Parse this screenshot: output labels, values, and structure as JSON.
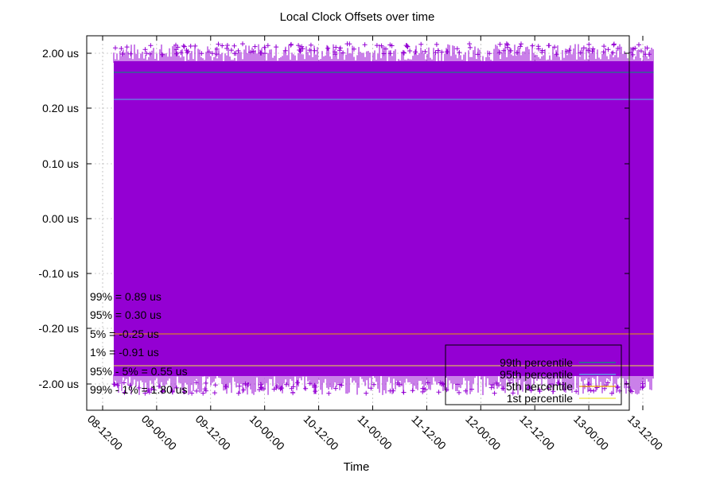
{
  "chart_data": {
    "type": "scatter",
    "title": "Local Clock Offsets over time",
    "xlabel": "Time",
    "ylabel": "",
    "y_scale": "symmetric-log",
    "y_ticks": [
      "2.00 us",
      "0.20 us",
      "0.10 us",
      "0.00 us",
      "-0.10 us",
      "-0.20 us",
      "-2.00 us"
    ],
    "y_tick_values": [
      2.0,
      0.2,
      0.1,
      0.0,
      -0.1,
      -0.2,
      -2.0
    ],
    "x_ticks": [
      "08-12:00",
      "09-00:00",
      "09-12:00",
      "10-00:00",
      "10-12:00",
      "11-00:00",
      "11-12:00",
      "12-00:00",
      "12-12:00",
      "13-00:00",
      "13-12:00"
    ],
    "x_range_ticks": [
      0.25,
      10.2
    ],
    "grid": true,
    "series": [
      {
        "name": "Local Clock Offsets",
        "color": "#9400d3",
        "marker": "+",
        "band_upper_us": 2.0,
        "band_lower_us": -2.0
      }
    ],
    "percentile_lines": [
      {
        "name": "99th percentile",
        "value": "0.89 us",
        "color": "#009e73"
      },
      {
        "name": "95th percentile",
        "value": "0.30 us",
        "color": "#56b4e9"
      },
      {
        "name": "5th percentile",
        "value": "-0.25 us",
        "color": "#e69f00"
      },
      {
        "name": "1st percentile",
        "value": "-0.91 us",
        "color": "#f0e442"
      }
    ],
    "stats": [
      "99% = 0.89 us",
      "95% = 0.30 us",
      "5% = -0.25 us",
      "1% = -0.91 us",
      "95% - 5% = 0.55 us",
      "99% - 1% = 1.80 us"
    ],
    "legend": {
      "position": "bottom-right",
      "entries": [
        "99th percentile",
        "95th percentile",
        "5th percentile",
        "1st percentile"
      ]
    }
  }
}
